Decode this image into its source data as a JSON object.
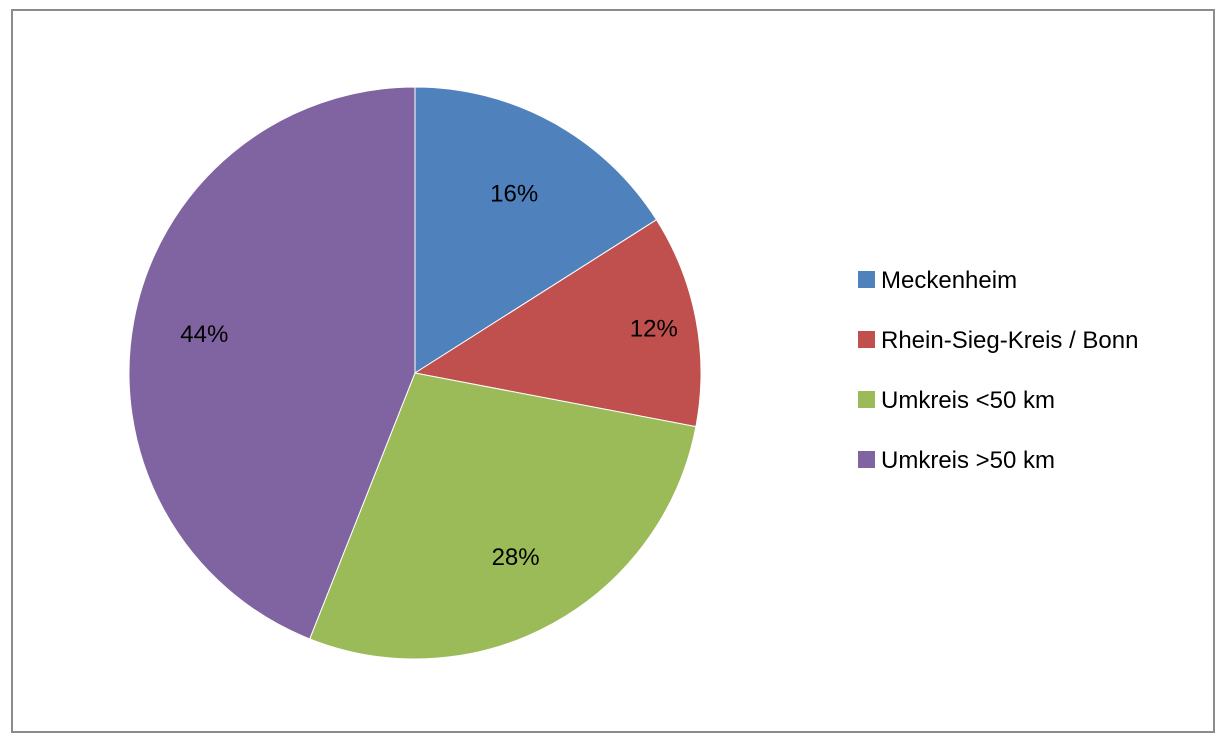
{
  "chart_data": {
    "type": "pie",
    "categories": [
      "Meckenheim",
      "Rhein-Sieg-Kreis / Bonn",
      "Umkreis <50 km",
      "Umkreis >50 km"
    ],
    "values": [
      16,
      12,
      28,
      44
    ],
    "data_labels": [
      "16%",
      "12%",
      "28%",
      "44%"
    ],
    "colors": [
      "#4f81bd",
      "#c0504d",
      "#9bbb59",
      "#8064a2"
    ],
    "legend": {
      "position": "right",
      "entries": [
        "Meckenheim",
        "Rhein-Sieg-Kreis / Bonn",
        "Umkreis <50 km",
        "Umkreis >50 km"
      ]
    },
    "start_angle_deg": 0,
    "direction": "clockwise"
  }
}
